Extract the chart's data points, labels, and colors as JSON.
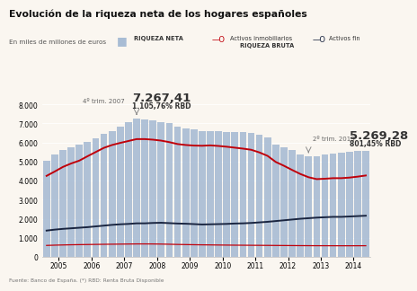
{
  "title": "Evolución de la riqueza neta de los hogares españoles",
  "subtitle": "En miles de millones de euros",
  "background_color": "#faf6f0",
  "bar_color": "#a8bcd4",
  "line_inmobiliarios_color": "#c0000a",
  "line_activos_fin_color": "#1a2540",
  "line_riqueza_bruta_color": "#c0000a",
  "annotation1_label": "4º trim. 2007",
  "annotation1_value": "7.267,41",
  "annotation1_pct": "1.105,76% RBD",
  "annotation2_label": "2º trim. 2013",
  "annotation2_value": "5.269,28",
  "annotation2_pct": "801,45% RBD",
  "footer": "Fuente: Banco de España. (*) RBD: Renta Bruta Disponible",
  "ylim": [
    0,
    8500
  ],
  "yticks": [
    0,
    1000,
    2000,
    3000,
    4000,
    5000,
    6000,
    7000,
    8000
  ],
  "riqueza_neta": [
    5050,
    5350,
    5600,
    5750,
    5900,
    6050,
    6200,
    6450,
    6620,
    6850,
    7050,
    7267,
    7220,
    7150,
    7080,
    7000,
    6850,
    6750,
    6680,
    6620,
    6600,
    6580,
    6560,
    6540,
    6530,
    6500,
    6400,
    6250,
    5900,
    5750,
    5600,
    5380,
    5269,
    5290,
    5350,
    5420,
    5460,
    5500,
    5550,
    5580
  ],
  "activos_inmobiliarios": [
    4250,
    4480,
    4720,
    4900,
    5050,
    5280,
    5500,
    5720,
    5870,
    5980,
    6080,
    6180,
    6180,
    6150,
    6100,
    6020,
    5920,
    5870,
    5840,
    5830,
    5850,
    5820,
    5780,
    5730,
    5680,
    5620,
    5480,
    5300,
    4980,
    4780,
    4560,
    4350,
    4180,
    4080,
    4100,
    4130,
    4130,
    4160,
    4210,
    4270
  ],
  "activos_fin": [
    1380,
    1430,
    1470,
    1500,
    1530,
    1560,
    1600,
    1640,
    1680,
    1710,
    1730,
    1760,
    1760,
    1780,
    1790,
    1770,
    1750,
    1740,
    1720,
    1700,
    1710,
    1720,
    1730,
    1750,
    1760,
    1780,
    1810,
    1840,
    1880,
    1920,
    1960,
    2000,
    2030,
    2060,
    2080,
    2100,
    2100,
    2120,
    2140,
    2160
  ],
  "riqueza_bruta": [
    600,
    615,
    625,
    635,
    642,
    648,
    654,
    660,
    665,
    670,
    675,
    680,
    680,
    678,
    672,
    663,
    652,
    645,
    638,
    632,
    628,
    622,
    618,
    614,
    611,
    608,
    605,
    602,
    599,
    596,
    593,
    590,
    588,
    586,
    585,
    584,
    583,
    583,
    584,
    585
  ],
  "xtick_years": [
    2005,
    2006,
    2007,
    2008,
    2009,
    2010,
    2011,
    2012,
    2013,
    2014
  ],
  "peak_idx": 11,
  "trough_idx": 32
}
